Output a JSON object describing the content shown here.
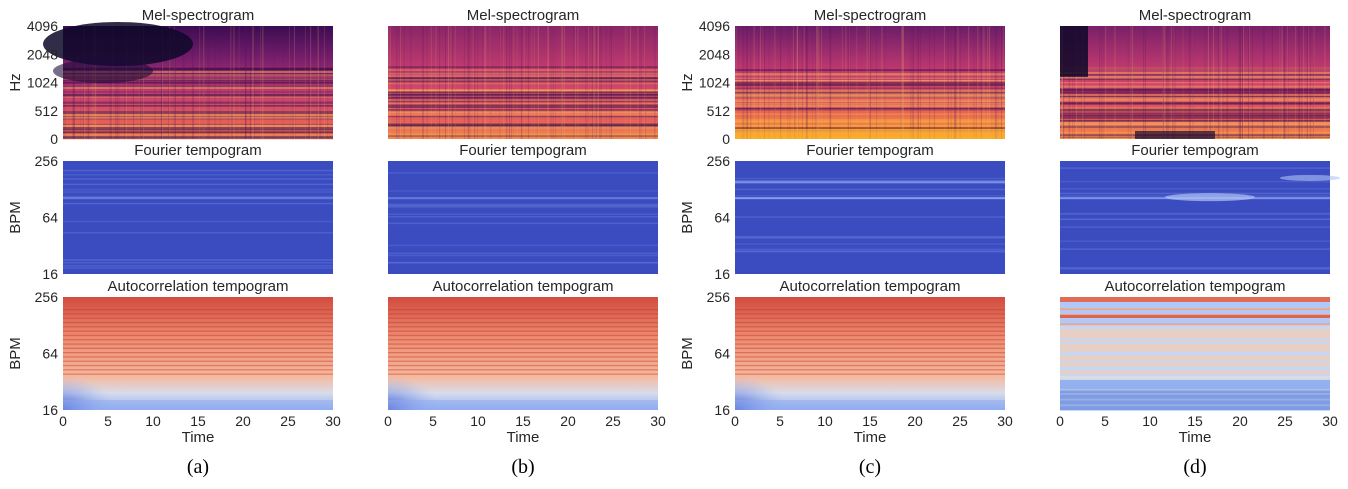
{
  "chart_data": [
    {
      "type": "heatmap",
      "caption": "(a)",
      "panels": [
        {
          "title": "Mel-spectrogram",
          "ylabel": "Hz",
          "yticks": [
            "0",
            "512",
            "1024",
            "2048",
            "4096"
          ],
          "show_yaxis": true
        },
        {
          "title": "Fourier tempogram",
          "ylabel": "BPM",
          "yticks": [
            "16",
            "64",
            "256"
          ],
          "show_yaxis": true
        },
        {
          "title": "Autocorrelation tempogram",
          "ylabel": "BPM",
          "yticks": [
            "16",
            "64",
            "256"
          ],
          "show_yaxis": true
        }
      ],
      "xlabel": "Time",
      "xticks": [
        "0",
        "5",
        "10",
        "15",
        "20",
        "25",
        "30"
      ],
      "xlim": [
        0,
        30
      ]
    },
    {
      "type": "heatmap",
      "caption": "(b)",
      "panels": [
        {
          "title": "Mel-spectrogram",
          "ylabel": "",
          "yticks": [],
          "show_yaxis": false
        },
        {
          "title": "Fourier tempogram",
          "ylabel": "",
          "yticks": [],
          "show_yaxis": false
        },
        {
          "title": "Autocorrelation tempogram",
          "ylabel": "",
          "yticks": [],
          "show_yaxis": false
        }
      ],
      "xlabel": "Time",
      "xticks": [
        "0",
        "5",
        "10",
        "15",
        "20",
        "25",
        "30"
      ],
      "xlim": [
        0,
        30
      ]
    },
    {
      "type": "heatmap",
      "caption": "(c)",
      "panels": [
        {
          "title": "Mel-spectrogram",
          "ylabel": "Hz",
          "yticks": [
            "0",
            "512",
            "1024",
            "2048",
            "4096"
          ],
          "show_yaxis": true
        },
        {
          "title": "Fourier tempogram",
          "ylabel": "BPM",
          "yticks": [
            "16",
            "64",
            "256"
          ],
          "show_yaxis": true
        },
        {
          "title": "Autocorrelation tempogram",
          "ylabel": "BPM",
          "yticks": [
            "16",
            "64",
            "256"
          ],
          "show_yaxis": true
        }
      ],
      "xlabel": "Time",
      "xticks": [
        "0",
        "5",
        "10",
        "15",
        "20",
        "25",
        "30"
      ],
      "xlim": [
        0,
        30
      ]
    },
    {
      "type": "heatmap",
      "caption": "(d)",
      "panels": [
        {
          "title": "Mel-spectrogram",
          "ylabel": "",
          "yticks": [],
          "show_yaxis": false
        },
        {
          "title": "Fourier tempogram",
          "ylabel": "",
          "yticks": [],
          "show_yaxis": false
        },
        {
          "title": "Autocorrelation tempogram",
          "ylabel": "",
          "yticks": [],
          "show_yaxis": false
        }
      ],
      "xlabel": "Time",
      "xticks": [
        "0",
        "5",
        "10",
        "15",
        "20",
        "25",
        "30"
      ],
      "xlim": [
        0,
        30
      ]
    }
  ],
  "colors": {
    "mel_low": "#0d0829",
    "mel_mid": "#b5367a",
    "mel_high": "#fca50a",
    "tempo_base": "#3b4cc0",
    "tempo_warm": "#d75445",
    "tempo_cool": "#b9d0f9"
  }
}
